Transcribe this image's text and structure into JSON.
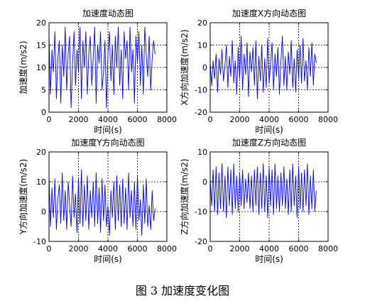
{
  "figure": {
    "caption": "图 3  加速度变化图"
  },
  "colors": {
    "line": "#0000ff",
    "axis": "#000000",
    "grid": "#000000"
  },
  "chart_data": [
    {
      "type": "line",
      "title": "加速度动态图",
      "xlabel": "时间(s)",
      "ylabel": "加速度(m/s2)",
      "xlim": [
        0,
        8000
      ],
      "ylim": [
        0,
        20
      ],
      "xticks": [
        0,
        2000,
        4000,
        6000,
        8000
      ],
      "yticks": [
        0,
        5,
        10,
        15,
        20
      ],
      "grid": true,
      "series": [
        {
          "x": [
            0,
            100,
            200,
            300,
            400,
            500,
            600,
            700,
            800,
            900,
            1000,
            1100,
            1200,
            1300,
            1400,
            1500,
            1600,
            1700,
            1800,
            1900,
            2000,
            2100,
            2200,
            2300,
            2400,
            2500,
            2600,
            2700,
            2800,
            2900,
            3000,
            3100,
            3200,
            3300,
            3400,
            3500,
            3600,
            3700,
            3800,
            3900,
            4000,
            4100,
            4200,
            4300,
            4400,
            4500,
            4600,
            4700,
            4800,
            4900,
            5000,
            5100,
            5200,
            5300,
            5400,
            5500,
            5600,
            5700,
            5800,
            5900,
            6000,
            6100,
            6200,
            6300,
            6400,
            6500,
            6600,
            6700,
            6800,
            6900,
            7000,
            7100,
            7200
          ],
          "values": [
            17,
            4,
            14,
            9,
            18,
            3,
            12,
            16,
            2,
            15,
            8,
            19,
            5,
            13,
            17,
            1,
            11,
            18,
            6,
            14,
            9,
            19,
            3,
            16,
            10,
            18,
            4,
            13,
            17,
            6,
            12,
            19,
            2,
            15,
            11,
            18,
            5,
            9,
            16,
            1,
            13,
            18,
            7,
            15,
            4,
            17,
            10,
            19,
            6,
            14,
            3,
            18,
            12,
            16,
            5,
            19,
            9,
            14,
            2,
            17,
            11,
            18,
            6,
            15,
            4,
            19,
            13,
            8,
            17,
            5,
            12,
            16,
            13
          ]
        }
      ]
    },
    {
      "type": "line",
      "title": "加速度X方向动态图",
      "xlabel": "时间(s)",
      "ylabel": "X方向加速度(m/s2)",
      "xlim": [
        0,
        8000
      ],
      "ylim": [
        -20,
        20
      ],
      "xticks": [
        0,
        2000,
        4000,
        6000,
        8000
      ],
      "yticks": [
        -20,
        -10,
        0,
        10,
        20
      ],
      "grid": true,
      "series": [
        {
          "x": [
            0,
            100,
            200,
            300,
            400,
            500,
            600,
            700,
            800,
            900,
            1000,
            1100,
            1200,
            1300,
            1400,
            1500,
            1600,
            1700,
            1800,
            1900,
            2000,
            2100,
            2200,
            2300,
            2400,
            2500,
            2600,
            2700,
            2800,
            2900,
            3000,
            3100,
            3200,
            3300,
            3400,
            3500,
            3600,
            3700,
            3800,
            3900,
            4000,
            4100,
            4200,
            4300,
            4400,
            4500,
            4600,
            4700,
            4800,
            4900,
            5000,
            5100,
            5200,
            5300,
            5400,
            5500,
            5600,
            5700,
            5800,
            5900,
            6000,
            6100,
            6200,
            6300,
            6400,
            6500,
            6600,
            6700,
            6800,
            6900,
            7000,
            7100,
            7200
          ],
          "values": [
            2,
            -8,
            3,
            -5,
            6,
            -11,
            4,
            -3,
            8,
            -6,
            1,
            10,
            -9,
            5,
            -4,
            12,
            -7,
            3,
            -12,
            9,
            -5,
            14,
            -10,
            6,
            -3,
            11,
            -13,
            7,
            -2,
            9,
            -8,
            12,
            -14,
            5,
            -6,
            10,
            -11,
            4,
            -9,
            13,
            -7,
            2,
            11,
            -10,
            6,
            -4,
            9,
            -12,
            3,
            14,
            -8,
            5,
            -10,
            7,
            -3,
            12,
            -9,
            4,
            -11,
            8,
            -5,
            10,
            -7,
            13,
            -6,
            3,
            -10,
            9,
            -4,
            11,
            -8,
            6,
            2
          ]
        }
      ]
    },
    {
      "type": "line",
      "title": "加速度Y方向动态图",
      "xlabel": "时间(s)",
      "ylabel": "Y方向加速度(m/s2)",
      "xlim": [
        0,
        8000
      ],
      "ylim": [
        -10,
        20
      ],
      "xticks": [
        0,
        2000,
        4000,
        6000,
        8000
      ],
      "yticks": [
        -10,
        0,
        10,
        20
      ],
      "grid": true,
      "series": [
        {
          "x": [
            0,
            100,
            200,
            300,
            400,
            500,
            600,
            700,
            800,
            900,
            1000,
            1100,
            1200,
            1300,
            1400,
            1500,
            1600,
            1700,
            1800,
            1900,
            2000,
            2100,
            2200,
            2300,
            2400,
            2500,
            2600,
            2700,
            2800,
            2900,
            3000,
            3100,
            3200,
            3300,
            3400,
            3500,
            3600,
            3700,
            3800,
            3900,
            4000,
            4100,
            4200,
            4300,
            4400,
            4500,
            4600,
            4700,
            4800,
            4900,
            5000,
            5100,
            5200,
            5300,
            5400,
            5500,
            5600,
            5700,
            5800,
            5900,
            6000,
            6100,
            6200,
            6300,
            6400,
            6500,
            6600,
            6700,
            6800,
            6900,
            7000,
            7100,
            7200
          ],
          "values": [
            12,
            -5,
            8,
            -2,
            11,
            -6,
            4,
            9,
            -4,
            13,
            -3,
            7,
            -6,
            10,
            2,
            -5,
            12,
            -2,
            6,
            -7,
            11,
            -4,
            14,
            -5,
            9,
            -3,
            12,
            -6,
            7,
            -2,
            10,
            -5,
            13,
            -4,
            8,
            -7,
            11,
            -3,
            9,
            -5,
            2,
            -8,
            7,
            -2,
            10,
            -6,
            12,
            -3,
            9,
            -5,
            11,
            -4,
            8,
            -6,
            13,
            -2,
            7,
            -5,
            10,
            -6,
            12,
            -3,
            4,
            -8,
            9,
            -4,
            11,
            -5,
            2,
            -6,
            7,
            -3,
            1
          ]
        }
      ]
    },
    {
      "type": "line",
      "title": "加速度Z方向动态图",
      "xlabel": "时间(s)",
      "ylabel": "Z方向加速度(m/s2)",
      "xlim": [
        0,
        8000
      ],
      "ylim": [
        -20,
        10
      ],
      "xticks": [
        0,
        2000,
        4000,
        6000,
        8000
      ],
      "yticks": [
        -20,
        -10,
        0,
        10
      ],
      "grid": true,
      "series": [
        {
          "x": [
            0,
            100,
            200,
            300,
            400,
            500,
            600,
            700,
            800,
            900,
            1000,
            1100,
            1200,
            1300,
            1400,
            1500,
            1600,
            1700,
            1800,
            1900,
            2000,
            2100,
            2200,
            2300,
            2400,
            2500,
            2600,
            2700,
            2800,
            2900,
            3000,
            3100,
            3200,
            3300,
            3400,
            3500,
            3600,
            3700,
            3800,
            3900,
            4000,
            4100,
            4200,
            4300,
            4400,
            4500,
            4600,
            4700,
            4800,
            4900,
            5000,
            5100,
            5200,
            5300,
            5400,
            5500,
            5600,
            5700,
            5800,
            5900,
            6000,
            6100,
            6200,
            6300,
            6400,
            6500,
            6600,
            6700,
            6800,
            6900,
            7000,
            7100,
            7200
          ],
          "values": [
            1,
            -8,
            4,
            -10,
            5,
            -11,
            3,
            -9,
            6,
            -10,
            2,
            -12,
            5,
            -8,
            4,
            -11,
            6,
            -9,
            2,
            -10,
            3,
            -8,
            4,
            -9,
            1,
            -7,
            3,
            -9,
            2,
            -10,
            4,
            -8,
            5,
            -11,
            3,
            -9,
            6,
            -10,
            2,
            -12,
            5,
            -8,
            4,
            -11,
            6,
            -9,
            2,
            -10,
            3,
            -8,
            5,
            -9,
            1,
            -11,
            4,
            -10,
            6,
            -8,
            2,
            -12,
            5,
            -9,
            3,
            -10,
            4,
            -8,
            6,
            -11,
            2,
            -9,
            4,
            -10,
            -3
          ]
        }
      ]
    }
  ]
}
